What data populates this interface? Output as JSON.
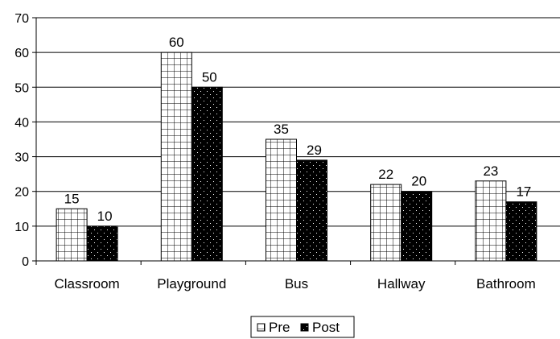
{
  "chart_data": {
    "type": "bar",
    "categories": [
      "Classroom",
      "Playground",
      "Bus",
      "Hallway",
      "Bathroom"
    ],
    "series": [
      {
        "name": "Pre",
        "values": [
          15,
          60,
          35,
          22,
          23
        ],
        "pattern": "grid"
      },
      {
        "name": "Post",
        "values": [
          10,
          50,
          29,
          20,
          17
        ],
        "pattern": "dots"
      }
    ],
    "ylim": [
      0,
      70
    ],
    "yticks": [
      0,
      10,
      20,
      30,
      40,
      50,
      60,
      70
    ],
    "grid": true,
    "legend": "bottom-center",
    "colors": {
      "pre_fill": "#ffffff",
      "pre_stroke": "#000000",
      "post_fill": "#000000",
      "post_dots": "#ffffff",
      "grid": "#000000"
    }
  }
}
